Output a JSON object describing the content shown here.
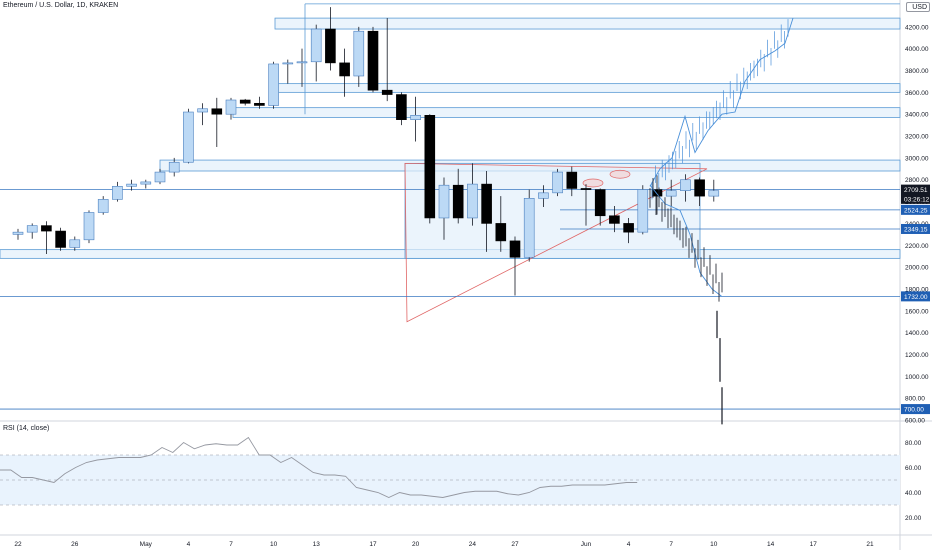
{
  "header": {
    "title": "Ethereum / U.S. Dollar, 1D, KRAKEN",
    "currency_label": "USD"
  },
  "rsi_panel": {
    "title": "RSI (14, close)",
    "ticks": [
      80,
      60,
      40,
      20
    ],
    "tick_labels": [
      "80.00",
      "60.00",
      "40.00",
      "20.00"
    ],
    "band": [
      30,
      70
    ],
    "values": [
      58,
      58,
      52,
      52,
      50,
      48,
      55,
      60,
      64,
      66,
      67,
      68,
      68,
      68,
      70,
      76,
      72,
      80,
      75,
      78,
      79,
      78,
      78,
      84,
      70,
      70,
      64,
      68,
      62,
      56,
      54,
      54,
      53,
      44,
      42,
      40,
      36,
      40,
      38,
      38,
      37,
      36,
      38,
      40,
      41,
      41,
      41,
      39,
      38,
      40,
      44,
      45,
      45,
      46,
      46,
      46,
      46,
      47,
      48,
      48
    ]
  },
  "colors": {
    "box_fill": "#e3effb",
    "box_stroke": "#5b9bd5",
    "triangle_stroke": "#e06666",
    "level_line": "#3a78c2",
    "bull_candle": "#bcd9f5",
    "bear_candle": "#000000",
    "forecast": "#4a90d9"
  },
  "price_axis": {
    "ticks": [
      4200,
      4000,
      3800,
      3600,
      3400,
      3200,
      3000,
      2800,
      2600,
      2400,
      2200,
      2000,
      1800,
      1600,
      1400,
      1200,
      1000,
      800,
      600
    ],
    "tick_labels": [
      "4200.00",
      "4000.00",
      "3800.00",
      "3600.00",
      "3400.00",
      "3200.00",
      "3000.00",
      "2800.00",
      "2600.00",
      "2400.00",
      "2200.00",
      "2000.00",
      "1800.00",
      "1600.00",
      "1400.00",
      "1200.00",
      "1000.00",
      "800.00",
      "600.00"
    ]
  },
  "price_badges": [
    {
      "label": "2709.51",
      "value": 2709.51,
      "color": "#131722"
    },
    {
      "label": "03:26:12",
      "value": 2625,
      "color": "#131722"
    },
    {
      "label": "2524.25",
      "value": 2524.25,
      "color": "#1f5fb4"
    },
    {
      "label": "2349.15",
      "value": 2349.15,
      "color": "#1f5fb4"
    },
    {
      "label": "1732.00",
      "value": 1732.0,
      "color": "#1f5fb4"
    },
    {
      "label": "700.00",
      "value": 700.0,
      "color": "#1f5fb4"
    }
  ],
  "time_axis": {
    "labels": [
      {
        "text": "22",
        "idx": 0
      },
      {
        "text": "26",
        "idx": 4
      },
      {
        "text": "May",
        "idx": 9
      },
      {
        "text": "4",
        "idx": 12
      },
      {
        "text": "7",
        "idx": 15
      },
      {
        "text": "10",
        "idx": 18
      },
      {
        "text": "13",
        "idx": 21
      },
      {
        "text": "17",
        "idx": 25
      },
      {
        "text": "20",
        "idx": 28
      },
      {
        "text": "24",
        "idx": 32
      },
      {
        "text": "27",
        "idx": 35
      },
      {
        "text": "Jun",
        "idx": 40
      },
      {
        "text": "4",
        "idx": 43
      },
      {
        "text": "7",
        "idx": 46
      },
      {
        "text": "10",
        "idx": 49
      },
      {
        "text": "14",
        "idx": 53
      },
      {
        "text": "17",
        "idx": 56
      },
      {
        "text": "21",
        "idx": 60
      }
    ]
  },
  "chart_data": {
    "type": "candlestick",
    "title": "Ethereum / U.S. Dollar, 1D, KRAKEN",
    "candles": [
      [
        2300,
        2350,
        2250,
        2320
      ],
      [
        2320,
        2400,
        2260,
        2380
      ],
      [
        2380,
        2420,
        2120,
        2330
      ],
      [
        2330,
        2360,
        2150,
        2180
      ],
      [
        2180,
        2280,
        2150,
        2250
      ],
      [
        2250,
        2520,
        2220,
        2500
      ],
      [
        2500,
        2650,
        2480,
        2620
      ],
      [
        2620,
        2780,
        2600,
        2740
      ],
      [
        2740,
        2800,
        2700,
        2760
      ],
      [
        2760,
        2800,
        2720,
        2780
      ],
      [
        2780,
        2900,
        2760,
        2870
      ],
      [
        2870,
        3000,
        2830,
        2960
      ],
      [
        2960,
        3450,
        2950,
        3420
      ],
      [
        3420,
        3500,
        3300,
        3450
      ],
      [
        3450,
        3550,
        3100,
        3400
      ],
      [
        3400,
        3550,
        3350,
        3530
      ],
      [
        3530,
        3540,
        3480,
        3500
      ],
      [
        3500,
        3560,
        3450,
        3480
      ],
      [
        3480,
        3880,
        3450,
        3860
      ],
      [
        3860,
        3900,
        3680,
        3870
      ],
      [
        3870,
        4000,
        3650,
        3880
      ],
      [
        3880,
        4220,
        3700,
        4180
      ],
      [
        4180,
        4380,
        3800,
        3870
      ],
      [
        3870,
        4000,
        3560,
        3750
      ],
      [
        3750,
        4200,
        3650,
        4160
      ],
      [
        4160,
        4200,
        3600,
        3620
      ],
      [
        3620,
        4280,
        3520,
        3580
      ],
      [
        3580,
        3600,
        3300,
        3350
      ],
      [
        3350,
        3560,
        3150,
        3390
      ],
      [
        3390,
        3400,
        2400,
        2450
      ],
      [
        2450,
        2820,
        2250,
        2750
      ],
      [
        2750,
        2900,
        2400,
        2450
      ],
      [
        2450,
        2950,
        2380,
        2760
      ],
      [
        2760,
        2880,
        2140,
        2400
      ],
      [
        2400,
        2650,
        2140,
        2240
      ],
      [
        2240,
        2280,
        1740,
        2090
      ],
      [
        2090,
        2710,
        2050,
        2630
      ],
      [
        2630,
        2750,
        2550,
        2680
      ],
      [
        2680,
        2900,
        2650,
        2870
      ],
      [
        2870,
        2920,
        2650,
        2720
      ],
      [
        2720,
        2760,
        2380,
        2710
      ],
      [
        2710,
        2720,
        2380,
        2470
      ],
      [
        2470,
        2560,
        2320,
        2400
      ],
      [
        2400,
        2450,
        2220,
        2320
      ],
      [
        2320,
        2750,
        2300,
        2710
      ],
      [
        2710,
        2840,
        2480,
        2650
      ],
      [
        2650,
        2800,
        2550,
        2700
      ],
      [
        2700,
        2850,
        2600,
        2800
      ],
      [
        2800,
        2820,
        2560,
        2650
      ],
      [
        2650,
        2800,
        2600,
        2700
      ]
    ],
    "horizontal_levels": [
      2709.51,
      2524.25,
      2349.15,
      1732.0,
      700.0
    ],
    "xlabel": "",
    "ylabel": "",
    "ylim": [
      560,
      4400
    ]
  }
}
